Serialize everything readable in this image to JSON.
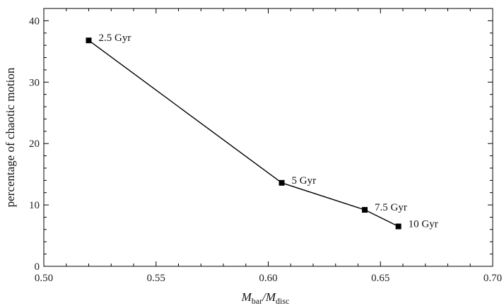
{
  "chart_data": {
    "type": "line",
    "xlabel": {
      "main": "M",
      "sub1": "bar",
      "sep": "/",
      "main2": "M",
      "sub2": "disc"
    },
    "ylabel": "percentage of chaotic motion",
    "xlim": [
      0.5,
      0.7
    ],
    "ylim": [
      0,
      42
    ],
    "xticks": [
      "0.50",
      "0.55",
      "0.60",
      "0.65",
      "0.70"
    ],
    "yticks": [
      "0",
      "10",
      "20",
      "30",
      "40"
    ],
    "grid": false,
    "series": [
      {
        "marker": "square",
        "color": "#000000",
        "points": [
          {
            "x": 0.52,
            "y": 36.8,
            "label": "2.5 Gyr"
          },
          {
            "x": 0.606,
            "y": 13.6,
            "label": "5 Gyr"
          },
          {
            "x": 0.643,
            "y": 9.2,
            "label": "7.5 Gyr"
          },
          {
            "x": 0.658,
            "y": 6.5,
            "label": "10 Gyr"
          }
        ]
      }
    ]
  }
}
